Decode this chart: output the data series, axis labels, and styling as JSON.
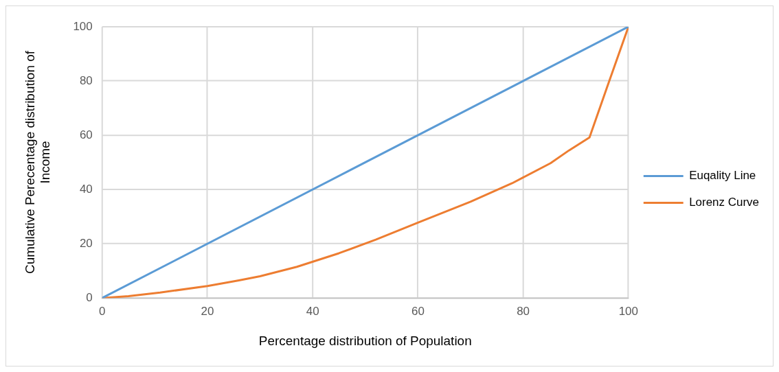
{
  "chart_data": {
    "type": "line",
    "xlabel": "Percentage distribution of Population",
    "ylabel": "Cumulative Perecentage distribution of Income",
    "xlim": [
      0,
      100
    ],
    "xticks": [
      0,
      20,
      40,
      60,
      80,
      100
    ],
    "ylim": [
      0,
      100
    ],
    "yticks": [
      0,
      20,
      40,
      60,
      80,
      100
    ],
    "grid": true,
    "legend": "right",
    "marker": "none",
    "series": [
      {
        "name": "Euqality Line",
        "color": "#5b9bd5",
        "x": [
          0,
          100
        ],
        "values": [
          0,
          100
        ]
      },
      {
        "name": "Lorenz Curve",
        "color": "#ed7d31",
        "x": [
          0,
          5,
          11,
          20,
          26,
          30,
          37,
          45,
          52,
          60,
          70,
          77.9,
          85.2,
          88.7,
          92.6,
          96,
          100
        ],
        "values": [
          0,
          0.7,
          2,
          4.4,
          6.5,
          8,
          11.5,
          16.5,
          21.5,
          27.8,
          35.5,
          42.3,
          49.7,
          54.4,
          59.2,
          78,
          100
        ]
      }
    ]
  }
}
